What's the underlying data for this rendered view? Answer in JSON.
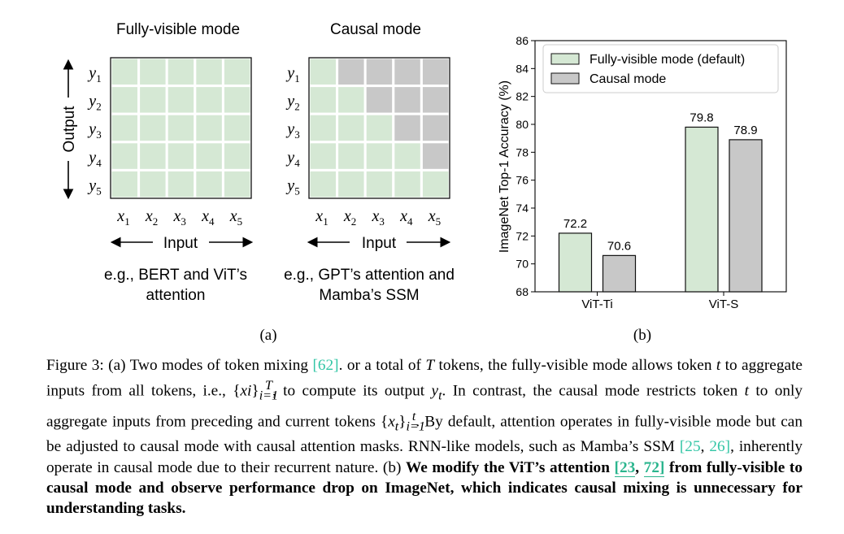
{
  "panel_a": {
    "left_title": "Fully-visible mode",
    "right_title": "Causal mode",
    "output_label": "Output",
    "input_label": "Input",
    "y_base": "y",
    "x_base": "x",
    "indices": [
      "1",
      "2",
      "3",
      "4",
      "5"
    ],
    "left_caption": [
      "e.g., BERT and ViT’s",
      "attention"
    ],
    "right_caption": [
      "e.g., GPT’s attention and",
      "Mamba’s SSM"
    ],
    "sublabel": "(a)",
    "colors": {
      "visible": "#d5e8d4",
      "masked": "#c8c8c8",
      "grid": "#ffffff",
      "border": "#111111"
    }
  },
  "panel_b": {
    "sublabel": "(b)"
  },
  "chart_data": {
    "type": "bar",
    "categories": [
      "ViT-Ti",
      "ViT-S"
    ],
    "series": [
      {
        "name": "Fully-visible mode (default)",
        "values": [
          72.2,
          79.8
        ],
        "color": "#d5e8d4"
      },
      {
        "name": "Causal mode",
        "values": [
          70.6,
          78.9
        ],
        "color": "#c8c8c8"
      }
    ],
    "value_labels": [
      [
        "72.2",
        "79.8"
      ],
      [
        "70.6",
        "78.9"
      ]
    ],
    "ylabel": "ImageNet Top-1 Accuracy (%)",
    "xlabel": "",
    "ylim": [
      68,
      86
    ],
    "yticks": [
      "68",
      "70",
      "72",
      "74",
      "76",
      "78",
      "80",
      "82",
      "84",
      "86"
    ],
    "legend_position": "top-right",
    "grid": false
  },
  "caption": {
    "label": "Figure 3:",
    "p1": " (a) Two modes of token mixing ",
    "ref62": "[62]",
    "p2": ". or a total of ",
    "T": "T",
    "p3": " tokens, the fully-visible mode allows token ",
    "t1": "t",
    "p4": " to aggregate inputs from all tokens, i.e., {",
    "xi": "xi",
    "p5": "}",
    "p6": ", to compute its output ",
    "yt": "y",
    "p7": ". In contrast, the causal mode restricts token ",
    "t2": "t",
    "p8": " to only aggregate inputs from preceding and current tokens {",
    "xi2": "x",
    "p9": "}",
    "p10": ". By default, attention operates in fully-visible mode but can be adjusted to causal mode with causal attention masks. RNN-like models, such as Mamba’s SSM ",
    "ref25": "[25",
    "ref26": "26]",
    "p11": ", inherently operate in causal mode due to their recurrent nature. (b) ",
    "bold1": "We modify the ViT’s attention ",
    "ref23": "[23",
    "ref72": "72]",
    "bold2": " from fully-visible to causal mode and observe performance drop on ImageNet, which indicates causal mixing is unnecessary for understanding tasks.",
    "sub_t": "t",
    "sub_i1": "i=1",
    "sup_T": "T",
    "sup_t": "t",
    "sep": ", "
  }
}
